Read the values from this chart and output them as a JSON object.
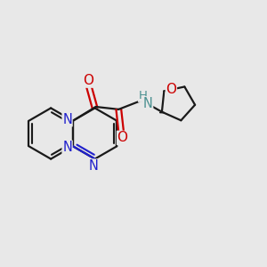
{
  "bg_color": "#e8e8e8",
  "bond_color": "#1a1a1a",
  "N_color": "#2020cc",
  "O_color": "#cc0000",
  "NH_color": "#4a9090",
  "line_width": 1.6,
  "font_size": 10.5,
  "fig_size": [
    3.0,
    3.0
  ],
  "dpi": 100,
  "xlim": [
    -1.0,
    9.5
  ],
  "ylim": [
    -1.5,
    7.5
  ]
}
